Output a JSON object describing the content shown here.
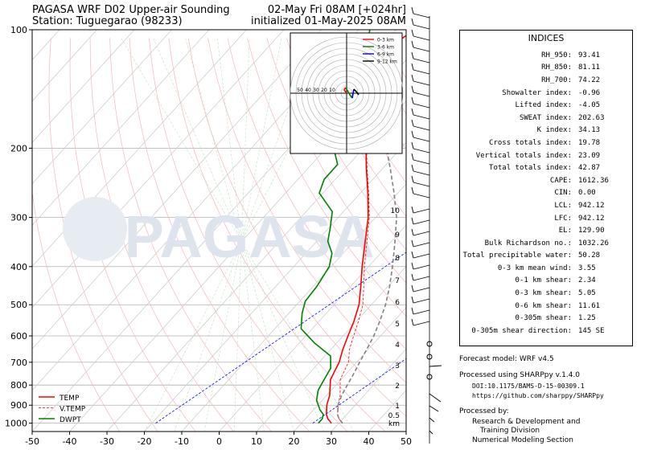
{
  "header": {
    "title_left": "PAGASA WRF D02 Upper-air Sounding",
    "station": "Station: Tuguegarao (98233)",
    "valid": "02-May Fri 08AM [+024hr]",
    "init": "initialized 01-May-2025 08AM"
  },
  "watermark": "PAGASA",
  "legend": {
    "temp": "TEMP",
    "vtemp": "V.TEMP",
    "dwpt": "DWPT"
  },
  "hodo_legend": [
    "0-3 km",
    "3-6 km",
    "6-9 km",
    "9-12 km"
  ],
  "hodo_rings": [
    "50",
    "40",
    "30",
    "20",
    "10"
  ],
  "height_labels": [
    "10",
    "9",
    "8",
    "7",
    "6",
    "5",
    "4",
    "3",
    "2",
    "1",
    "0.5",
    "km"
  ],
  "indices": {
    "title": "INDICES",
    "rows": [
      {
        "k": "RH_950:",
        "v": "93.41"
      },
      {
        "k": "RH_850:",
        "v": "81.11"
      },
      {
        "k": "RH_700:",
        "v": "74.22"
      },
      {
        "k": "Showalter index:",
        "v": "-0.96"
      },
      {
        "k": "Lifted index:",
        "v": "-4.05"
      },
      {
        "k": "SWEAT index:",
        "v": "202.63"
      },
      {
        "k": "K index:",
        "v": "34.13"
      },
      {
        "k": "Cross totals index:",
        "v": "19.78"
      },
      {
        "k": "Vertical totals index:",
        "v": "23.09"
      },
      {
        "k": "Total totals index:",
        "v": "42.87"
      },
      {
        "k": "CAPE:",
        "v": "1612.36"
      },
      {
        "k": "CIN:",
        "v": "0.00"
      },
      {
        "k": "LCL:",
        "v": "942.12"
      },
      {
        "k": "LFC:",
        "v": "942.12"
      },
      {
        "k": "EL:",
        "v": "129.90"
      },
      {
        "k": "Bulk Richardson no.:",
        "v": "1032.26"
      },
      {
        "k": "Total precipitable water:",
        "v": "50.28"
      },
      {
        "k": "0-3 km mean wind:",
        "v": "3.55"
      },
      {
        "k": "0-1 km shear:",
        "v": "2.34"
      },
      {
        "k": "0-3 km shear:",
        "v": "5.05"
      },
      {
        "k": "0-6 km shear:",
        "v": "11.61"
      },
      {
        "k": "0-305m shear:",
        "v": "1.25"
      },
      {
        "k": "0-305m shear direction:",
        "v": "145 SE"
      }
    ]
  },
  "footer": {
    "model": "Forecast model: WRF v4.5",
    "proc": "Processed using SHARPpy v.1.4.0",
    "doi": "DOI:10.1175/BAMS-D-15-00309.1",
    "url": "https://github.com/sharppy/SHARPpy",
    "by": "Processed by:",
    "org1": "Research & Development and",
    "org2": "Training Division",
    "org3": "Numerical Modeling Section"
  },
  "chart_data": {
    "type": "line",
    "xlabel": "",
    "ylabel": "",
    "xlim": [
      -50,
      50
    ],
    "ylim": [
      1050,
      100
    ],
    "y_scale": "log",
    "x_ticks": [
      -50,
      -40,
      -30,
      -20,
      -10,
      0,
      10,
      20,
      30,
      40,
      50
    ],
    "y_ticks": [
      100,
      200,
      300,
      400,
      500,
      600,
      700,
      800,
      900,
      1000
    ],
    "series": [
      {
        "name": "TEMP",
        "color": "#ff0000",
        "style": "solid",
        "points": [
          [
            28,
            1000
          ],
          [
            26,
            975
          ],
          [
            24.5,
            950
          ],
          [
            23.5,
            925
          ],
          [
            22.4,
            900
          ],
          [
            20.8,
            850
          ],
          [
            17.2,
            775
          ],
          [
            15.3,
            700
          ],
          [
            13.2,
            650
          ],
          [
            11.3,
            600
          ],
          [
            9.3,
            550
          ],
          [
            6.7,
            500
          ],
          [
            2.8,
            450
          ],
          [
            -1.7,
            400
          ],
          [
            -6.5,
            350
          ],
          [
            -12,
            300
          ],
          [
            -18,
            260
          ],
          [
            -24.4,
            225
          ],
          [
            -31.5,
            190
          ],
          [
            -40,
            155
          ],
          [
            -43.5,
            140
          ],
          [
            -46.5,
            125
          ],
          [
            -47.5,
            110
          ],
          [
            -45,
            100
          ]
        ]
      },
      {
        "name": "V.TEMP",
        "color": "#ff0000",
        "style": "dashed",
        "points": [
          [
            31,
            1000
          ],
          [
            29,
            975
          ],
          [
            27.5,
            950
          ],
          [
            26.5,
            925
          ],
          [
            25.4,
            900
          ],
          [
            23.6,
            850
          ],
          [
            19.8,
            775
          ],
          [
            17.8,
            700
          ],
          [
            15,
            650
          ],
          [
            12.8,
            600
          ],
          [
            10.5,
            550
          ],
          [
            7.7,
            500
          ],
          [
            3.6,
            450
          ],
          [
            -1.1,
            400
          ],
          [
            -6,
            350
          ],
          [
            -11.7,
            300
          ],
          [
            -17.8,
            260
          ],
          [
            -24.2,
            225
          ],
          [
            -31.4,
            190
          ],
          [
            -39.8,
            155
          ],
          [
            -43.3,
            140
          ]
        ]
      },
      {
        "name": "DWPT",
        "color": "#008000",
        "style": "solid",
        "points": [
          [
            24.5,
            1000
          ],
          [
            24.5,
            975
          ],
          [
            23.7,
            950
          ],
          [
            21.7,
            925
          ],
          [
            18.5,
            875
          ],
          [
            16.5,
            825
          ],
          [
            15.5,
            775
          ],
          [
            14.5,
            725
          ],
          [
            11.5,
            675
          ],
          [
            4,
            625
          ],
          [
            -3,
            575
          ],
          [
            -6.5,
            525
          ],
          [
            -8.5,
            490
          ],
          [
            -9,
            450
          ],
          [
            -10.5,
            400
          ],
          [
            -13,
            370
          ],
          [
            -17,
            345
          ],
          [
            -19.5,
            320
          ],
          [
            -23,
            290
          ],
          [
            -31,
            260
          ],
          [
            -33,
            240
          ],
          [
            -33,
            220
          ],
          [
            -38,
            200
          ],
          [
            -40.5,
            180
          ],
          [
            -43,
            160
          ],
          [
            -46.5,
            140
          ],
          [
            -50,
            125
          ],
          [
            -54,
            110
          ],
          [
            -57,
            100
          ]
        ]
      },
      {
        "name": "Parcel",
        "color": "#808080",
        "style": "dashed",
        "points": [
          [
            31,
            1000
          ],
          [
            29,
            975
          ],
          [
            27.5,
            950
          ],
          [
            26.5,
            925
          ],
          [
            25.4,
            900
          ],
          [
            24,
            850
          ],
          [
            23,
            800
          ],
          [
            22,
            750
          ],
          [
            20.8,
            700
          ],
          [
            19.6,
            650
          ],
          [
            18.2,
            600
          ],
          [
            16.2,
            550
          ],
          [
            13.8,
            500
          ],
          [
            10.5,
            450
          ],
          [
            6.4,
            400
          ],
          [
            1.5,
            350
          ],
          [
            -4.4,
            300
          ],
          [
            -11,
            260
          ],
          [
            -18,
            225
          ],
          [
            -26.5,
            190
          ],
          [
            -35,
            160
          ],
          [
            -43,
            135
          ],
          [
            -50,
            115
          ]
        ]
      }
    ]
  }
}
